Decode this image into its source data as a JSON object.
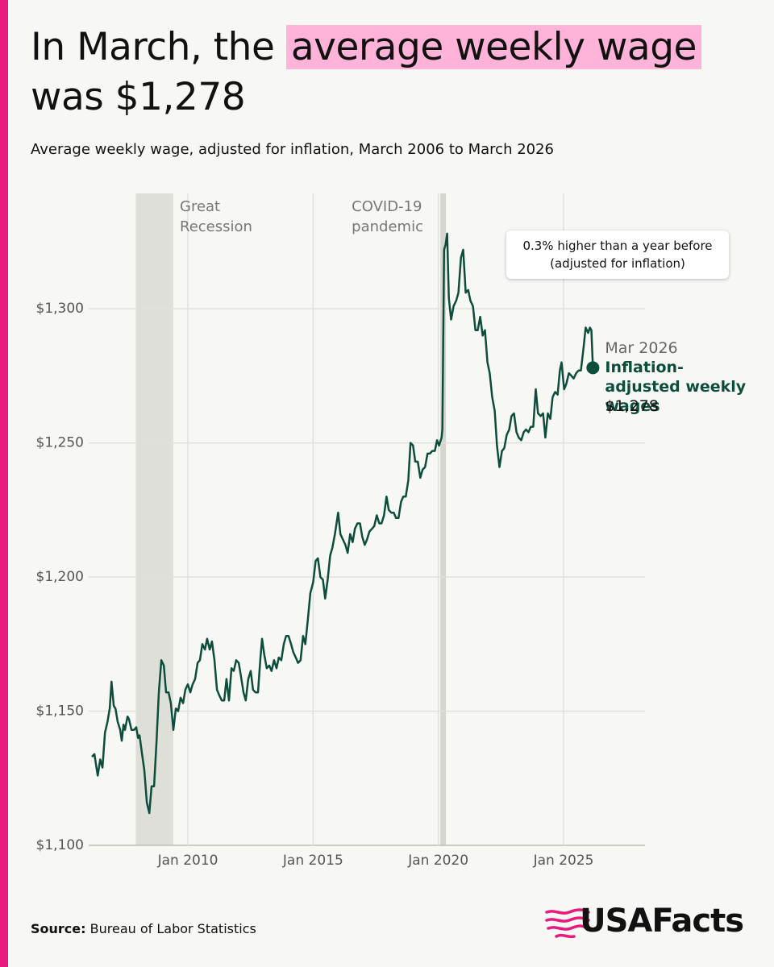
{
  "chart_data": {
    "type": "line",
    "title": {
      "before": "In March, the",
      "highlight": "average weekly wage",
      "after": "was $1,278"
    },
    "subtitle": "Average weekly wage, adjusted for inflation, March 2006 to March 2026",
    "source": {
      "label": "Source:",
      "text": "Bureau of Labor Statistics"
    },
    "brand": "USAFacts",
    "callout": "0.3% higher than a year before (adjusted for inflation)",
    "endpoint": {
      "date": "Mar 2026",
      "label": "$1,278"
    },
    "shaded_periods": [
      {
        "label": "Great Recession",
        "start": 2007.92,
        "end": 2009.42
      },
      {
        "label": "COVID-19 pandemic",
        "start": 2020.08,
        "end": 2020.3
      }
    ],
    "x": [
      2006.17,
      2006.27,
      2006.4,
      2006.5,
      2006.59,
      2006.69,
      2006.79,
      2006.88,
      2006.95,
      2007.04,
      2007.11,
      2007.2,
      2007.3,
      2007.36,
      2007.43,
      2007.49,
      2007.59,
      2007.65,
      2007.75,
      2007.85,
      2007.94,
      2008.01,
      2008.07,
      2008.17,
      2008.26,
      2008.36,
      2008.46,
      2008.55,
      2008.65,
      2008.75,
      2008.84,
      2008.94,
      2009.04,
      2009.13,
      2009.23,
      2009.32,
      2009.42,
      2009.52,
      2009.61,
      2009.71,
      2009.81,
      2009.9,
      2010.0,
      2010.1,
      2010.19,
      2010.29,
      2010.39,
      2010.48,
      2010.58,
      2010.68,
      2010.77,
      2010.87,
      2010.96,
      2011.06,
      2011.16,
      2011.25,
      2011.35,
      2011.45,
      2011.54,
      2011.64,
      2011.74,
      2011.83,
      2011.93,
      2012.03,
      2012.12,
      2012.22,
      2012.31,
      2012.41,
      2012.51,
      2012.6,
      2012.7,
      2012.8,
      2012.89,
      2012.96,
      2013.05,
      2013.15,
      2013.25,
      2013.34,
      2013.44,
      2013.54,
      2013.63,
      2013.73,
      2013.83,
      2013.92,
      2014.02,
      2014.12,
      2014.21,
      2014.31,
      2014.4,
      2014.5,
      2014.6,
      2014.69,
      2014.79,
      2014.89,
      2015.0,
      2015.1,
      2015.19,
      2015.29,
      2015.39,
      2015.48,
      2015.58,
      2015.68,
      2015.77,
      2015.87,
      2016.0,
      2016.09,
      2016.19,
      2016.29,
      2016.38,
      2016.48,
      2016.58,
      2016.67,
      2016.77,
      2016.87,
      2016.96,
      2017.06,
      2017.15,
      2017.25,
      2017.35,
      2017.44,
      2017.54,
      2017.64,
      2017.73,
      2017.83,
      2017.93,
      2018.02,
      2018.12,
      2018.22,
      2018.31,
      2018.41,
      2018.51,
      2018.6,
      2018.7,
      2018.8,
      2018.89,
      2018.99,
      2019.08,
      2019.18,
      2019.28,
      2019.37,
      2019.47,
      2019.57,
      2019.66,
      2019.76,
      2019.86,
      2019.95,
      2020.03,
      2020.13,
      2020.16,
      2020.23,
      2020.29,
      2020.35,
      2020.42,
      2020.51,
      2020.61,
      2020.71,
      2020.8,
      2020.9,
      2020.99,
      2021.09,
      2021.19,
      2021.28,
      2021.38,
      2021.48,
      2021.57,
      2021.67,
      2021.77,
      2021.86,
      2021.96,
      2022.05,
      2022.15,
      2022.25,
      2022.34,
      2022.44,
      2022.54,
      2022.63,
      2022.73,
      2022.83,
      2022.92,
      2023.02,
      2023.12,
      2023.21,
      2023.31,
      2023.41,
      2023.5,
      2023.6,
      2023.69,
      2023.79,
      2023.89,
      2023.98,
      2024.08,
      2024.18,
      2024.27,
      2024.37,
      2024.47,
      2024.56,
      2024.66,
      2024.76,
      2024.85,
      2024.92,
      2025.02,
      2025.11,
      2025.21,
      2025.31,
      2025.4,
      2025.5,
      2025.6,
      2025.69,
      2025.79,
      2025.88,
      2025.98,
      2026.05,
      2026.11,
      2026.17
    ],
    "series": [
      {
        "name": "Inflation-adjusted weekly wages",
        "color": "#0d4d3c",
        "values": [
          1133,
          1134,
          1126,
          1132,
          1129,
          1142,
          1146,
          1151,
          1161,
          1152,
          1151,
          1146,
          1143,
          1139,
          1145,
          1143,
          1148,
          1147,
          1143,
          1143,
          1144,
          1140,
          1141,
          1134,
          1128,
          1116,
          1112,
          1122,
          1122,
          1139,
          1157,
          1169,
          1167,
          1157,
          1157,
          1153,
          1143,
          1151,
          1150,
          1155,
          1153,
          1158,
          1160,
          1157,
          1160,
          1162,
          1168,
          1169,
          1175,
          1173,
          1177,
          1173,
          1176,
          1169,
          1158,
          1156,
          1154,
          1154,
          1162,
          1154,
          1166,
          1165,
          1169,
          1168,
          1163,
          1157,
          1154,
          1162,
          1165,
          1158,
          1157,
          1157,
          1169,
          1177,
          1171,
          1166,
          1167,
          1165,
          1169,
          1166,
          1170,
          1169,
          1175,
          1178,
          1178,
          1175,
          1172,
          1170,
          1168,
          1169,
          1178,
          1175,
          1184,
          1194,
          1198,
          1206,
          1207,
          1200,
          1199,
          1192,
          1199,
          1208,
          1211,
          1216,
          1224,
          1216,
          1214,
          1212,
          1209,
          1216,
          1213,
          1218,
          1220,
          1220,
          1215,
          1212,
          1214,
          1217,
          1218,
          1219,
          1223,
          1220,
          1220,
          1223,
          1230,
          1225,
          1224,
          1224,
          1222,
          1222,
          1228,
          1230,
          1230,
          1236,
          1250,
          1249,
          1243,
          1243,
          1237,
          1240,
          1241,
          1246,
          1246,
          1247,
          1247,
          1251,
          1249,
          1252,
          1255,
          1322,
          1324,
          1328,
          1304,
          1296,
          1301,
          1303,
          1306,
          1319,
          1322,
          1306,
          1307,
          1303,
          1301,
          1292,
          1292,
          1297,
          1290,
          1292,
          1280,
          1276,
          1267,
          1262,
          1249,
          1241,
          1247,
          1248,
          1253,
          1255,
          1260,
          1261,
          1254,
          1252,
          1251,
          1254,
          1255,
          1254,
          1256,
          1256,
          1270,
          1261,
          1260,
          1261,
          1252,
          1261,
          1259,
          1267,
          1269,
          1268,
          1277,
          1280,
          1270,
          1272,
          1276,
          1275,
          1274,
          1276,
          1277,
          1277,
          1285,
          1293,
          1291,
          1293,
          1292,
          1278
        ]
      }
    ],
    "xlim": [
      2006.04,
      2028.25
    ],
    "ylim": [
      1100,
      1343
    ],
    "xticks": [
      {
        "value": 2010,
        "label": "Jan 2010"
      },
      {
        "value": 2015,
        "label": "Jan 2015"
      },
      {
        "value": 2020,
        "label": "Jan 2020"
      },
      {
        "value": 2025,
        "label": "Jan 2025"
      }
    ],
    "yticks": [
      {
        "value": 1100,
        "label": "$1,100"
      },
      {
        "value": 1150,
        "label": "$1,150"
      },
      {
        "value": 1200,
        "label": "$1,200"
      },
      {
        "value": 1250,
        "label": "$1,250"
      },
      {
        "value": 1300,
        "label": "$1,300"
      }
    ],
    "grid": true
  }
}
